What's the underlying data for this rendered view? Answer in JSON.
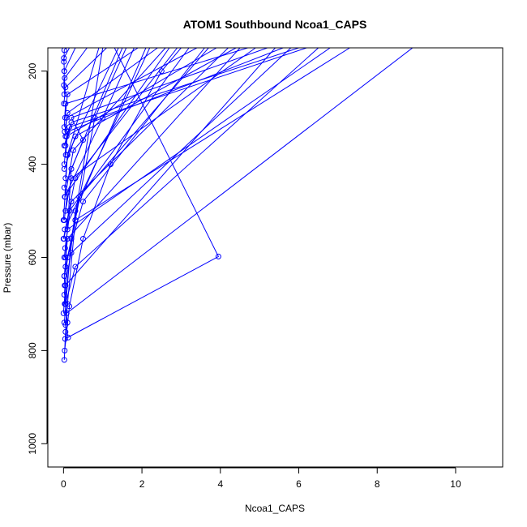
{
  "chart_data": {
    "type": "line",
    "title": "ATOM1 Southbound Ncoa1_CAPS",
    "xlabel": "Ncoa1_CAPS",
    "ylabel": "Pressure (mbar)",
    "xlim": [
      -0.4,
      11.2
    ],
    "ylim": [
      1050,
      150
    ],
    "y_reversed": true,
    "xticks": [
      0,
      2,
      4,
      6,
      8,
      10
    ],
    "yticks": [
      200,
      400,
      600,
      800,
      1000
    ],
    "grid": false,
    "legend": "none",
    "color": "#0000ff",
    "marker": "open-circle",
    "series": [
      {
        "points": [
          [
            0.02,
            820
          ],
          [
            0.05,
            760
          ],
          [
            0.1,
            700
          ],
          [
            0.3,
            520
          ],
          [
            0.8,
            300
          ],
          [
            1.6,
            150
          ]
        ]
      },
      {
        "points": [
          [
            0.03,
            800
          ],
          [
            0.15,
            705
          ],
          [
            0.5,
            560
          ],
          [
            1.2,
            400
          ],
          [
            2.5,
            200
          ],
          [
            3.0,
            150
          ]
        ]
      },
      {
        "points": [
          [
            0.04,
            775
          ],
          [
            3.95,
            598
          ],
          [
            1.3,
            150
          ]
        ]
      },
      {
        "points": [
          [
            0.12,
            772
          ],
          [
            0.05,
            745
          ],
          [
            0.08,
            720
          ],
          [
            8.9,
            150
          ]
        ]
      },
      {
        "points": [
          [
            0.1,
            740
          ],
          [
            0.05,
            700
          ],
          [
            0.3,
            620
          ],
          [
            6.5,
            150
          ]
        ]
      },
      {
        "points": [
          [
            0.0,
            720
          ],
          [
            0.05,
            660
          ],
          [
            5.4,
            150
          ]
        ]
      },
      {
        "points": [
          [
            0.05,
            700
          ],
          [
            0.02,
            640
          ],
          [
            0.1,
            560
          ],
          [
            4.5,
            150
          ]
        ]
      },
      {
        "points": [
          [
            0.02,
            680
          ],
          [
            0.1,
            600
          ],
          [
            0.5,
            480
          ],
          [
            3.6,
            150
          ]
        ]
      },
      {
        "points": [
          [
            0.03,
            660
          ],
          [
            0.2,
            590
          ],
          [
            5.8,
            150
          ]
        ]
      },
      {
        "points": [
          [
            0.05,
            620
          ],
          [
            0.3,
            520
          ],
          [
            7.3,
            150
          ]
        ]
      },
      {
        "points": [
          [
            0.02,
            600
          ],
          [
            0.1,
            540
          ],
          [
            6.8,
            150
          ]
        ]
      },
      {
        "points": [
          [
            0.04,
            580
          ],
          [
            0.2,
            480
          ],
          [
            4.2,
            150
          ]
        ]
      },
      {
        "points": [
          [
            0.01,
            560
          ],
          [
            0.15,
            500
          ],
          [
            3.2,
            150
          ]
        ]
      },
      {
        "points": [
          [
            0.03,
            540
          ],
          [
            2.2,
            150
          ]
        ]
      },
      {
        "points": [
          [
            0.02,
            520
          ],
          [
            0.1,
            460
          ],
          [
            2.7,
            150
          ]
        ]
      },
      {
        "points": [
          [
            0.05,
            500
          ],
          [
            0.2,
            430
          ],
          [
            4.9,
            150
          ]
        ]
      },
      {
        "points": [
          [
            0.03,
            470
          ],
          [
            1.0,
            300
          ],
          [
            1.8,
            150
          ]
        ]
      },
      {
        "points": [
          [
            0.02,
            450
          ],
          [
            0.5,
            348
          ],
          [
            0.2,
            300
          ],
          [
            5.2,
            150
          ]
        ]
      },
      {
        "points": [
          [
            0.05,
            430
          ],
          [
            0.1,
            380
          ],
          [
            1.4,
            150
          ]
        ]
      },
      {
        "points": [
          [
            0.02,
            400
          ],
          [
            0.08,
            340
          ],
          [
            3.9,
            150
          ]
        ]
      },
      {
        "points": [
          [
            0.06,
            380
          ],
          [
            0.1,
            330
          ],
          [
            5.6,
            150
          ]
        ]
      },
      {
        "points": [
          [
            0.02,
            360
          ],
          [
            0.15,
            320
          ],
          [
            6.2,
            150
          ]
        ]
      },
      {
        "points": [
          [
            0.05,
            340
          ],
          [
            0.08,
            300
          ],
          [
            3.4,
            150
          ]
        ]
      },
      {
        "points": [
          [
            0.03,
            330
          ],
          [
            0.1,
            290
          ],
          [
            2.4,
            150
          ]
        ]
      },
      {
        "points": [
          [
            0.02,
            320
          ],
          [
            0.05,
            270
          ],
          [
            4.7,
            150
          ]
        ]
      },
      {
        "points": [
          [
            0.04,
            300
          ],
          [
            0.1,
            250
          ],
          [
            1.9,
            150
          ]
        ]
      },
      {
        "points": [
          [
            0.01,
            270
          ],
          [
            0.05,
            235
          ],
          [
            1.1,
            150
          ]
        ]
      },
      {
        "points": [
          [
            0.02,
            250
          ],
          [
            0.03,
            215
          ],
          [
            0.6,
            150
          ]
        ]
      },
      {
        "points": [
          [
            0.01,
            230
          ],
          [
            0.02,
            200
          ],
          [
            0.3,
            150
          ]
        ]
      },
      {
        "points": [
          [
            0.02,
            200
          ],
          [
            0.01,
            172
          ],
          [
            0.15,
            150
          ]
        ]
      },
      {
        "points": [
          [
            0.01,
            180
          ],
          [
            0.02,
            155
          ],
          [
            0.05,
            150
          ]
        ]
      },
      {
        "points": [
          [
            0.0,
            560
          ],
          [
            0.3,
            430
          ],
          [
            2.9,
            150
          ]
        ]
      },
      {
        "points": [
          [
            0.02,
            640
          ],
          [
            0.4,
            470
          ],
          [
            3.7,
            150
          ]
        ]
      },
      {
        "points": [
          [
            0.05,
            600
          ],
          [
            0.2,
            410
          ],
          [
            1.5,
            150
          ]
        ]
      },
      {
        "points": [
          [
            0.0,
            520
          ],
          [
            0.1,
            380
          ],
          [
            0.9,
            150
          ]
        ]
      },
      {
        "points": [
          [
            0.03,
            700
          ],
          [
            0.3,
            500
          ],
          [
            2.1,
            150
          ]
        ]
      },
      {
        "points": [
          [
            0.02,
            740
          ],
          [
            0.2,
            560
          ],
          [
            1.0,
            150
          ]
        ]
      },
      {
        "points": [
          [
            0.04,
            470
          ],
          [
            0.25,
            370
          ],
          [
            2.6,
            150
          ]
        ]
      },
      {
        "points": [
          [
            0.02,
            410
          ],
          [
            0.3,
            340
          ],
          [
            4.4,
            150
          ]
        ]
      },
      {
        "points": [
          [
            0.05,
            360
          ],
          [
            0.2,
            310
          ],
          [
            6.0,
            150
          ]
        ]
      }
    ]
  }
}
